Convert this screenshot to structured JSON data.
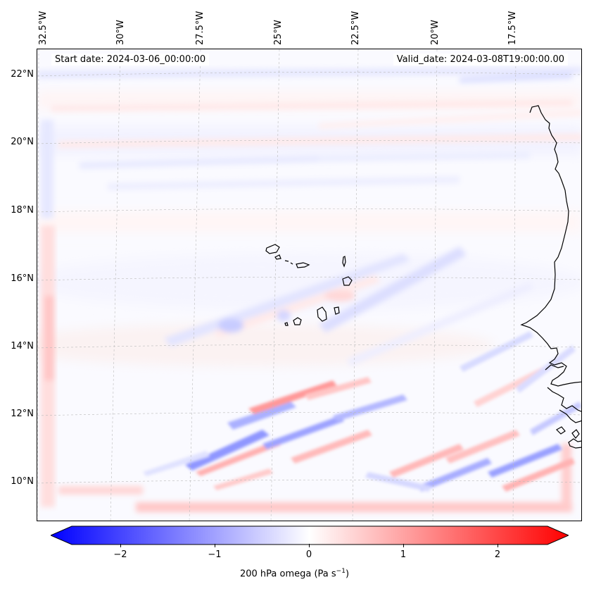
{
  "header": {
    "start_date": "Start date: 2024-03-06_00:00:00",
    "valid_date": "Valid_date: 2024-03-08T19:00:00.00"
  },
  "lon_labels": [
    "32.5°W",
    "30°W",
    "27.5°W",
    "25°W",
    "22.5°W",
    "20°W",
    "17.5°W"
  ],
  "lat_labels": [
    "22°N",
    "20°N",
    "18°N",
    "16°N",
    "14°N",
    "12°N",
    "10°N"
  ],
  "colorbar": {
    "ticks": [
      "−2",
      "−1",
      "0",
      "1",
      "2"
    ],
    "label_prefix": "200 hPa omega (Pa s",
    "label_exp": "−1",
    "label_suffix": ")",
    "min": -2.7,
    "max": 2.7,
    "colors": {
      "neg": "#0000ff",
      "zero": "#ffffff",
      "pos": "#ff0000"
    }
  },
  "map": {
    "extent_lon": [
      -33.0,
      -15.5
    ],
    "extent_lat": [
      8.8,
      22.8
    ],
    "coast_color": "#000000",
    "grid_color": "#bbbbbb"
  }
}
